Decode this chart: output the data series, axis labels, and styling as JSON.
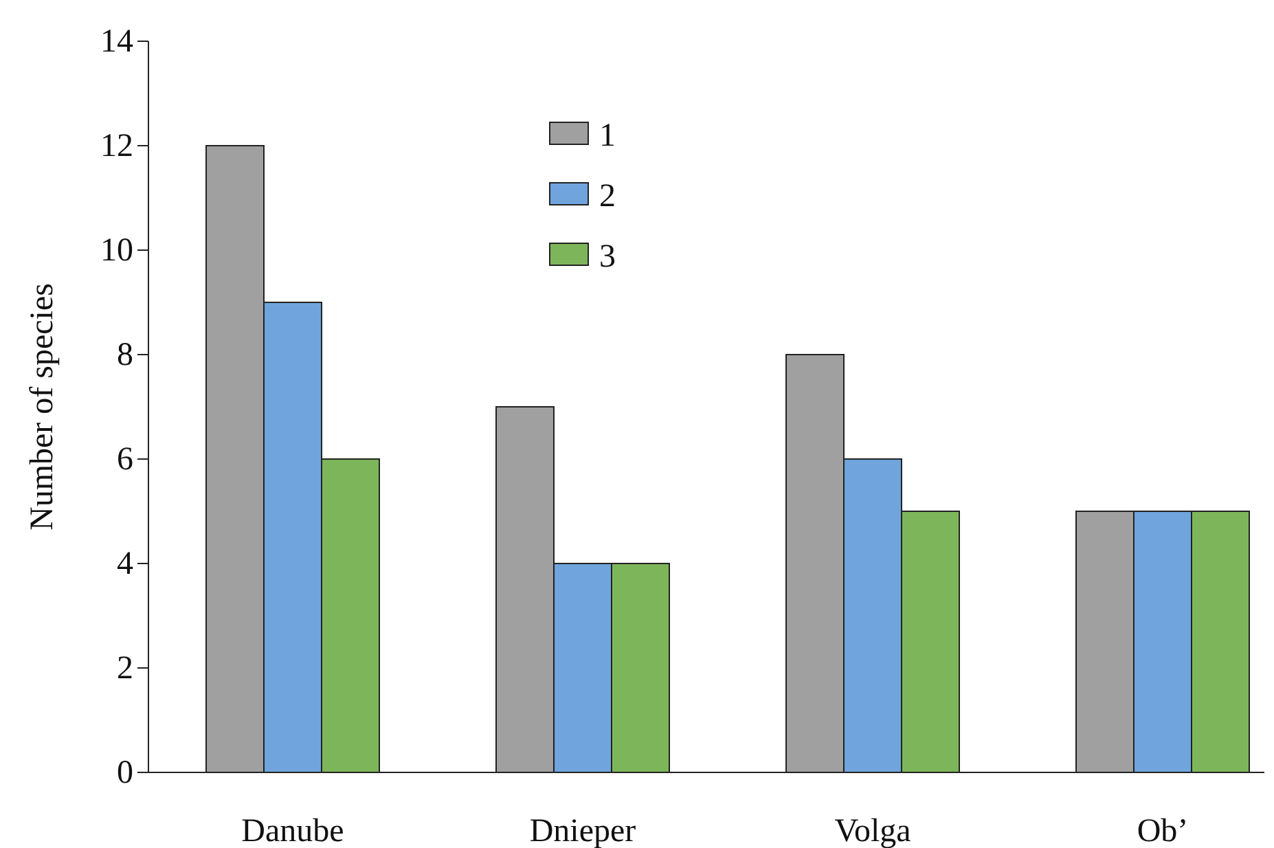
{
  "chart_data": {
    "type": "bar",
    "ylabel": "Number of species",
    "categories": [
      "Danube",
      "Dnieper",
      "Volga",
      "Ob’"
    ],
    "series": [
      {
        "name": "1",
        "color": "#a0a0a0",
        "values": [
          12,
          7,
          8,
          5
        ]
      },
      {
        "name": "2",
        "color": "#6fa5dc",
        "values": [
          9,
          4,
          6,
          5
        ]
      },
      {
        "name": "3",
        "color": "#7db65a",
        "values": [
          6,
          4,
          5,
          5
        ]
      }
    ],
    "ylim": [
      0,
      14
    ],
    "yticks": [
      0,
      2,
      4,
      6,
      8,
      10,
      12,
      14
    ],
    "grid": false,
    "legend": "top"
  }
}
